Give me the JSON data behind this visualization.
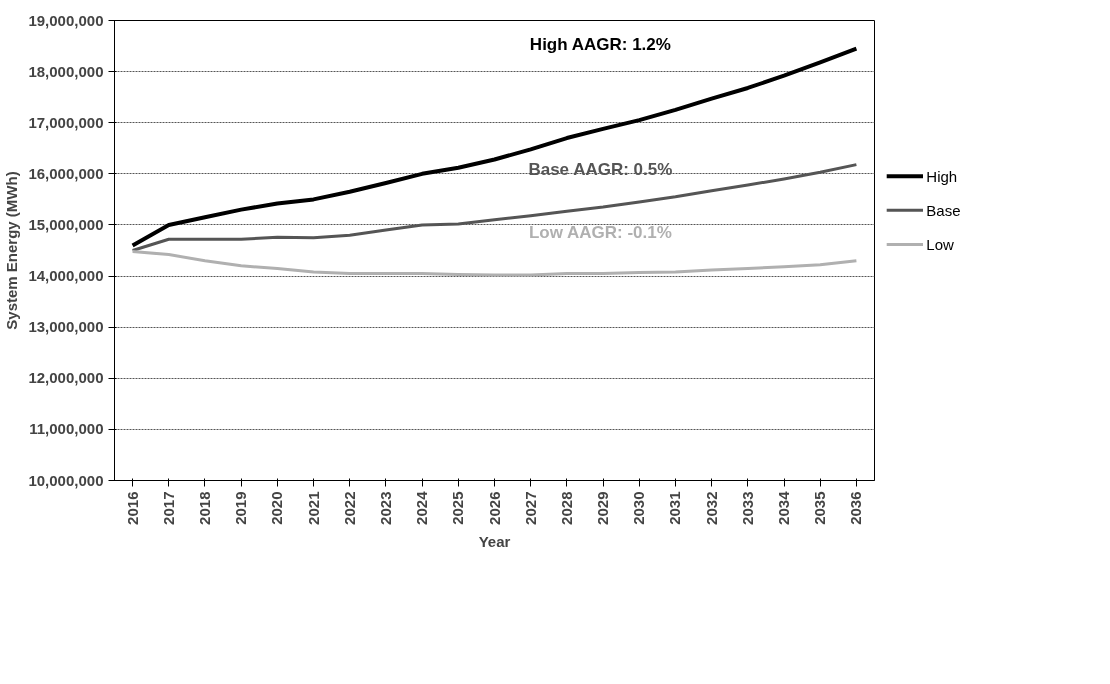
{
  "chart_data": {
    "type": "line",
    "xlabel": "Year",
    "ylabel": "System Energy (MWh)",
    "categories": [
      "2016",
      "2017",
      "2018",
      "2019",
      "2020",
      "2021",
      "2022",
      "2023",
      "2024",
      "2025",
      "2026",
      "2027",
      "2028",
      "2029",
      "2030",
      "2031",
      "2032",
      "2033",
      "2034",
      "2035",
      "2036"
    ],
    "series": [
      {
        "name": "High",
        "color": "#000000",
        "values": [
          14600000,
          15000000,
          15150000,
          15300000,
          15420000,
          15500000,
          15650000,
          15820000,
          16000000,
          16120000,
          16280000,
          16480000,
          16700000,
          16880000,
          17050000,
          17250000,
          17470000,
          17680000,
          17920000,
          18180000,
          18450000
        ]
      },
      {
        "name": "Base",
        "color": "#555555",
        "values": [
          14500000,
          14720000,
          14720000,
          14720000,
          14760000,
          14750000,
          14800000,
          14900000,
          15000000,
          15020000,
          15100000,
          15180000,
          15270000,
          15350000,
          15450000,
          15550000,
          15670000,
          15780000,
          15900000,
          16030000,
          16180000
        ]
      },
      {
        "name": "Low",
        "color": "#b0b0b0",
        "values": [
          14480000,
          14420000,
          14300000,
          14200000,
          14150000,
          14080000,
          14050000,
          14050000,
          14050000,
          14030000,
          14020000,
          14020000,
          14050000,
          14050000,
          14070000,
          14080000,
          14120000,
          14150000,
          14180000,
          14220000,
          14300000
        ]
      }
    ],
    "annotations": [
      "High AAGR:  1.2%",
      "Base AAGR:  0.5%",
      "Low AAGR:  -0.1%"
    ],
    "ylim": [
      10000000,
      19000000
    ],
    "yticks": [
      {
        "value": 10000000,
        "label": "10,000,000"
      },
      {
        "value": 11000000,
        "label": "11,000,000"
      },
      {
        "value": 12000000,
        "label": "12,000,000"
      },
      {
        "value": 13000000,
        "label": "13,000,000"
      },
      {
        "value": 14000000,
        "label": "14,000,000"
      },
      {
        "value": 15000000,
        "label": "15,000,000"
      },
      {
        "value": 16000000,
        "label": "16,000,000"
      },
      {
        "value": 17000000,
        "label": "17,000,000"
      },
      {
        "value": 18000000,
        "label": "18,000,000"
      },
      {
        "value": 19000000,
        "label": "19,000,000"
      }
    ],
    "grid": "y",
    "legend": "right",
    "marker": "none",
    "line_style": "solid"
  }
}
